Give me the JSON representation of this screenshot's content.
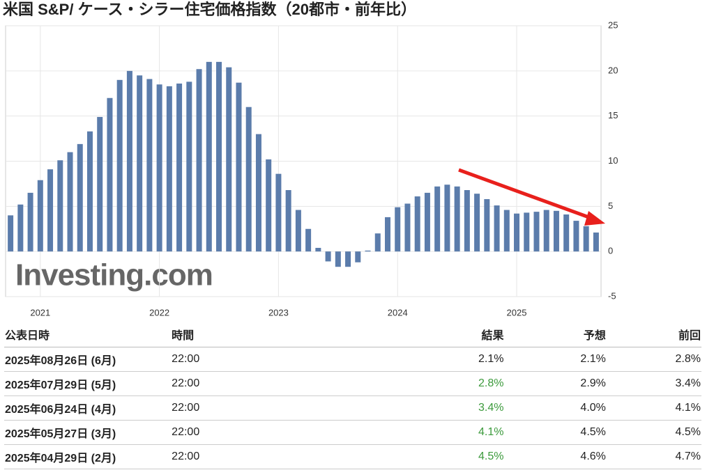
{
  "chart_data": {
    "type": "bar",
    "title": "米国 S&P/ ケース・シラー住宅価格指数（20都市・前年比）",
    "watermark": "Investing.com",
    "categories": [
      null,
      null,
      null,
      "2021",
      null,
      null,
      null,
      null,
      null,
      null,
      null,
      null,
      null,
      null,
      null,
      "2022",
      null,
      null,
      null,
      null,
      null,
      null,
      null,
      null,
      null,
      null,
      null,
      "2023",
      null,
      null,
      null,
      null,
      null,
      null,
      null,
      null,
      null,
      null,
      null,
      "2024",
      null,
      null,
      null,
      null,
      null,
      null,
      null,
      null,
      null,
      null,
      null,
      "2025",
      null,
      null,
      null,
      null,
      null,
      null,
      null,
      null
    ],
    "values": [
      4.0,
      5.2,
      6.5,
      7.9,
      9.1,
      10.1,
      11.0,
      11.9,
      13.3,
      14.9,
      17.0,
      19.0,
      20.0,
      19.5,
      19.1,
      18.5,
      18.3,
      18.6,
      18.8,
      20.2,
      21.0,
      21.0,
      20.4,
      18.7,
      16.0,
      13.0,
      10.2,
      8.6,
      6.8,
      4.6,
      2.5,
      0.4,
      -1.1,
      -1.7,
      -1.7,
      -1.2,
      0.1,
      2.0,
      3.8,
      4.9,
      5.3,
      6.1,
      6.5,
      7.2,
      7.4,
      7.2,
      6.8,
      6.4,
      5.8,
      5.1,
      4.6,
      4.2,
      4.3,
      4.4,
      4.6,
      4.5,
      4.1,
      3.4,
      2.8,
      2.1
    ],
    "color": "#5b7cab",
    "ylim": [
      -5,
      25
    ],
    "yticks": [
      -5,
      0,
      5,
      10,
      15,
      20,
      25
    ],
    "grid": true
  },
  "table": {
    "header": [
      "公表日時",
      "時間",
      "結果",
      "予想",
      "前回"
    ],
    "highlight_color": "#3c9a3c",
    "rows": [
      {
        "cells": [
          "2025年08月26日 (6月)",
          "22:00",
          "2.1%",
          "2.1%",
          "2.8%"
        ],
        "highlight": false
      },
      {
        "cells": [
          "2025年07月29日 (5月)",
          "22:00",
          "2.8%",
          "2.9%",
          "3.4%"
        ],
        "highlight": true
      },
      {
        "cells": [
          "2025年06月24日 (4月)",
          "22:00",
          "3.4%",
          "4.0%",
          "4.1%"
        ],
        "highlight": true
      },
      {
        "cells": [
          "2025年05月27日 (3月)",
          "22:00",
          "4.1%",
          "4.5%",
          "4.5%"
        ],
        "highlight": true
      },
      {
        "cells": [
          "2025年04月29日 (2月)",
          "22:00",
          "4.5%",
          "4.6%",
          "4.7%"
        ],
        "highlight": true
      }
    ]
  }
}
